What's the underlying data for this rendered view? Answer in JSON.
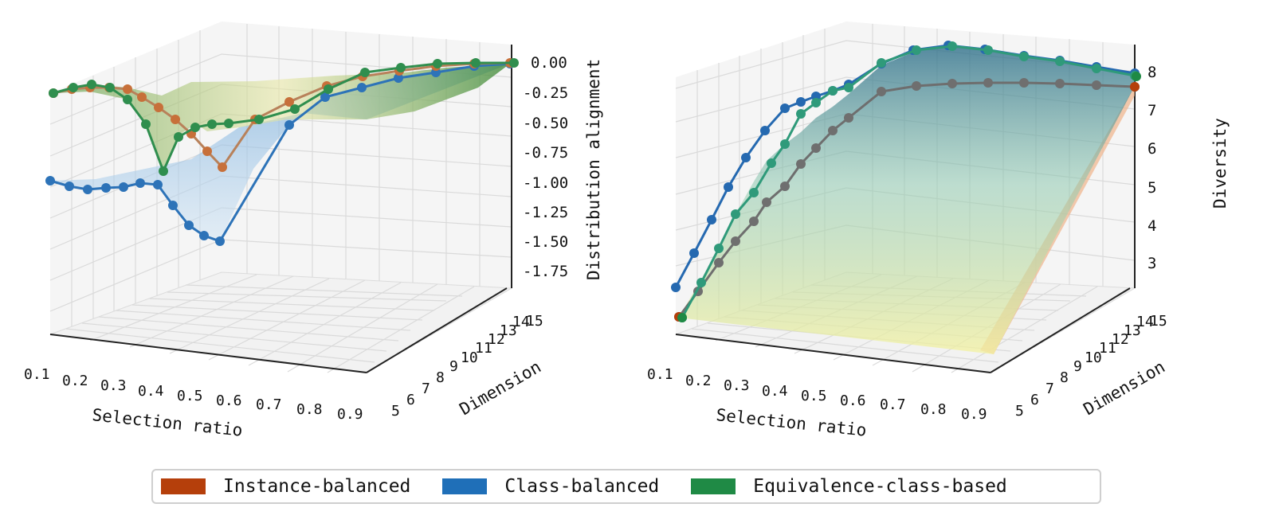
{
  "colors": {
    "instance": "#b53f0b",
    "class": "#1f6fb8",
    "equiv": "#1f8a45"
  },
  "legend": [
    {
      "label": "Instance-balanced",
      "color": "#b53f0b"
    },
    {
      "label": "Class-balanced",
      "color": "#1f6fb8"
    },
    {
      "label": "Equivalence-class-based",
      "color": "#1f8a45"
    }
  ],
  "chart_data": [
    {
      "type": "3d-surface",
      "xlabel": "Selection ratio",
      "ylabel": "Dimension",
      "zlabel": "Distribution alignment",
      "x_ticks": [
        "0.1",
        "0.2",
        "0.3",
        "0.4",
        "0.5",
        "0.6",
        "0.7",
        "0.8",
        "0.9"
      ],
      "y_ticks": [
        "5",
        "6",
        "7",
        "8",
        "9",
        "10",
        "11",
        "12",
        "13",
        "14",
        "15"
      ],
      "z_ticks": [
        "0.00",
        "-0.25",
        "-0.50",
        "-0.75",
        "-1.00",
        "-1.25",
        "-1.50",
        "-1.75"
      ],
      "zlim": [
        -1.9,
        0.05
      ],
      "grid": true,
      "series": [
        {
          "name": "Instance-balanced",
          "key": "instance",
          "front_edge_x": [
            0.1,
            0.15,
            0.2,
            0.25,
            0.3,
            0.35,
            0.4,
            0.45,
            0.5,
            0.55,
            0.6
          ],
          "front_edge_z": [
            -0.25,
            -0.24,
            -0.22,
            -0.22,
            -0.28,
            -0.38,
            -0.55,
            -0.7,
            -0.8,
            -0.9,
            -1.05
          ],
          "back_edge_x": [
            0.5,
            0.55,
            0.6,
            0.65,
            0.7,
            0.75,
            0.8,
            0.85,
            0.9
          ],
          "back_edge_z": [
            -0.62,
            -0.5,
            -0.38,
            -0.22,
            -0.12,
            -0.08,
            -0.05,
            -0.02,
            0.0
          ]
        },
        {
          "name": "Class-balanced",
          "key": "class",
          "front_edge_x": [
            0.1,
            0.15,
            0.2,
            0.25,
            0.3,
            0.35,
            0.4,
            0.45,
            0.5,
            0.55,
            0.6
          ],
          "front_edge_z": [
            -1.0,
            -1.04,
            -1.06,
            -1.05,
            -1.04,
            -1.02,
            -1.04,
            -1.2,
            -1.4,
            -1.5,
            -1.55
          ],
          "back_edge_x": [
            0.45,
            0.5,
            0.55,
            0.6,
            0.65,
            0.7,
            0.75,
            0.8,
            0.85,
            0.9
          ],
          "back_edge_z": [
            -1.05,
            -0.8,
            -0.58,
            -0.4,
            -0.28,
            -0.2,
            -0.14,
            -0.08,
            -0.04,
            0.0
          ]
        },
        {
          "name": "Equivalence-class-based",
          "key": "equiv",
          "front_edge_x": [
            0.1,
            0.15,
            0.2,
            0.25,
            0.3,
            0.35,
            0.4,
            0.45,
            0.5,
            0.55,
            0.6
          ],
          "front_edge_z": [
            -0.25,
            -0.2,
            -0.2,
            -0.22,
            -0.3,
            -0.55,
            -0.95,
            -0.62,
            -0.55,
            -0.52,
            -0.5
          ],
          "back_edge_x": [
            0.5,
            0.55,
            0.6,
            0.65,
            0.7,
            0.75,
            0.8,
            0.85,
            0.9
          ],
          "back_edge_z": [
            -0.48,
            -0.4,
            -0.28,
            -0.16,
            -0.08,
            -0.04,
            -0.02,
            -0.01,
            0.0
          ]
        }
      ]
    },
    {
      "type": "3d-surface",
      "xlabel": "Selection ratio",
      "ylabel": "Dimension",
      "zlabel": "Diversity",
      "x_ticks": [
        "0.1",
        "0.2",
        "0.3",
        "0.4",
        "0.5",
        "0.6",
        "0.7",
        "0.8",
        "0.9"
      ],
      "y_ticks": [
        "5",
        "6",
        "7",
        "8",
        "9",
        "10",
        "11",
        "12",
        "13",
        "14",
        "15"
      ],
      "z_ticks": [
        "3",
        "4",
        "5",
        "6",
        "7",
        "8"
      ],
      "zlim": [
        2.35,
        8.6
      ],
      "grid": true,
      "series": [
        {
          "name": "Instance-balanced",
          "key": "instance",
          "front_edge_x": [
            0.1,
            0.15,
            0.2,
            0.25,
            0.3,
            0.35,
            0.4,
            0.45,
            0.5,
            0.55,
            0.6,
            0.65,
            0.7,
            0.75,
            0.8,
            0.85,
            0.9
          ],
          "front_edge_z": [
            1.5,
            2.6,
            3.5,
            4.3,
            4.9,
            5.5,
            6.0,
            6.4,
            6.8,
            7.1,
            7.4,
            7.6,
            7.7,
            7.75,
            7.8,
            7.8,
            7.8
          ],
          "back_edge_x": [
            0.1,
            0.9
          ],
          "back_edge_z": [
            1.5,
            7.8
          ]
        },
        {
          "name": "Class-balanced",
          "key": "class",
          "front_edge_x": [
            0.1,
            0.15,
            0.2,
            0.25,
            0.3,
            0.35,
            0.4,
            0.45,
            0.5,
            0.55,
            0.6,
            0.65,
            0.7,
            0.75,
            0.8,
            0.85,
            0.9
          ],
          "front_edge_z": [
            2.3,
            3.5,
            4.5,
            5.3,
            6.1,
            6.8,
            7.2,
            7.4,
            7.6,
            7.9,
            8.1,
            8.15,
            8.1,
            8.05,
            8.0,
            7.95,
            7.9
          ],
          "back_edge_x": [
            0.1,
            0.9
          ],
          "back_edge_z": [
            2.3,
            7.9
          ]
        },
        {
          "name": "Equivalence-class-based",
          "key": "equiv",
          "front_edge_x": [
            0.1,
            0.15,
            0.2,
            0.25,
            0.3,
            0.35,
            0.4,
            0.45,
            0.5,
            0.55,
            0.6,
            0.65,
            0.7,
            0.75,
            0.8,
            0.85,
            0.9
          ],
          "front_edge_z": [
            1.5,
            2.6,
            3.6,
            4.5,
            5.3,
            6.2,
            6.9,
            7.2,
            7.4,
            7.8,
            8.0,
            8.1,
            8.1,
            8.05,
            8.0,
            7.95,
            7.9
          ],
          "back_edge_x": [
            0.1,
            0.9
          ],
          "back_edge_z": [
            1.5,
            7.9
          ]
        }
      ]
    }
  ]
}
